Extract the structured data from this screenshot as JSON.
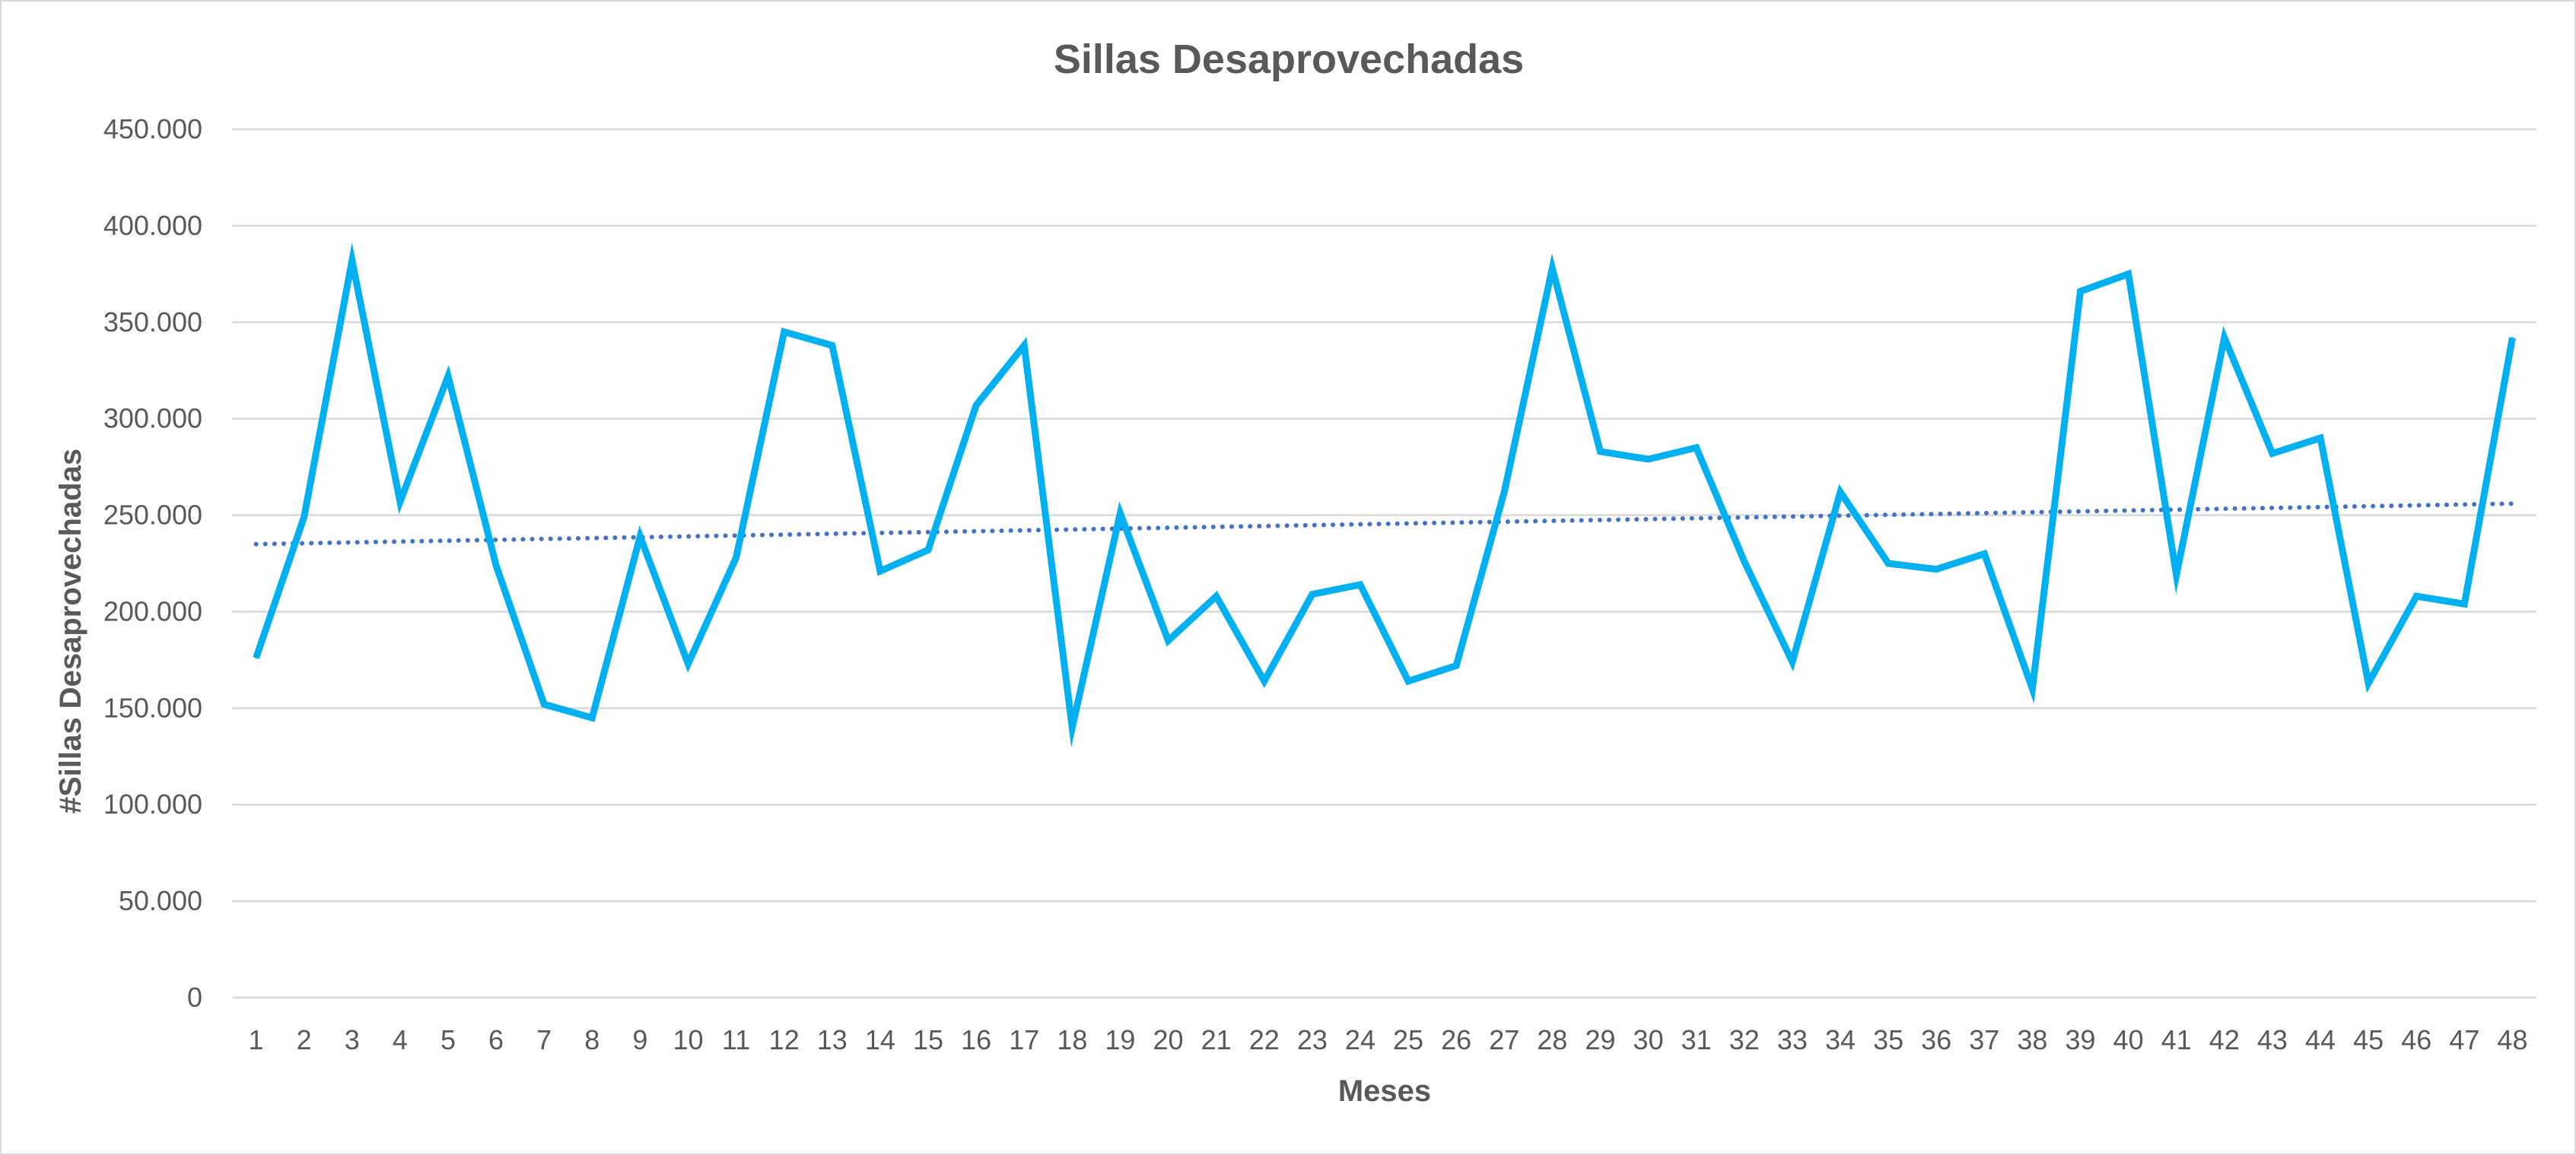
{
  "chart_data": {
    "type": "line",
    "title": "Sillas Desaprovechadas",
    "xlabel": "Meses",
    "ylabel": "#Sillas Desaprovechadas",
    "ylim": [
      0,
      450000
    ],
    "y_ticks": [
      "0",
      "50.000",
      "100.000",
      "150.000",
      "200.000",
      "250.000",
      "300.000",
      "350.000",
      "400.000",
      "450.000"
    ],
    "y_tick_values": [
      0,
      50000,
      100000,
      150000,
      200000,
      250000,
      300000,
      350000,
      400000,
      450000
    ],
    "categories": [
      "1",
      "2",
      "3",
      "4",
      "5",
      "6",
      "7",
      "8",
      "9",
      "10",
      "11",
      "12",
      "13",
      "14",
      "15",
      "16",
      "17",
      "18",
      "19",
      "20",
      "21",
      "22",
      "23",
      "24",
      "25",
      "26",
      "27",
      "28",
      "29",
      "30",
      "31",
      "32",
      "33",
      "34",
      "35",
      "36",
      "37",
      "38",
      "39",
      "40",
      "41",
      "42",
      "43",
      "44",
      "45",
      "46",
      "47",
      "48"
    ],
    "grid": true,
    "legend": "none",
    "series": [
      {
        "color": "#00B0F0",
        "values": [
          176000,
          249000,
          382000,
          257000,
          322000,
          224000,
          152000,
          145000,
          239000,
          173000,
          228000,
          345000,
          338000,
          221000,
          232000,
          307000,
          338000,
          140000,
          251000,
          185000,
          208000,
          164000,
          209000,
          214000,
          164000,
          172000,
          262000,
          378000,
          283000,
          279000,
          285000,
          226000,
          174000,
          262000,
          225000,
          222000,
          230000,
          160000,
          366000,
          375000,
          219000,
          342000,
          282000,
          290000,
          163000,
          208000,
          204000,
          342000
        ]
      }
    ],
    "trendline": {
      "type": "linear",
      "style": "dotted",
      "color": "#4472C4",
      "start_value": 235000,
      "end_value": 256000
    }
  }
}
